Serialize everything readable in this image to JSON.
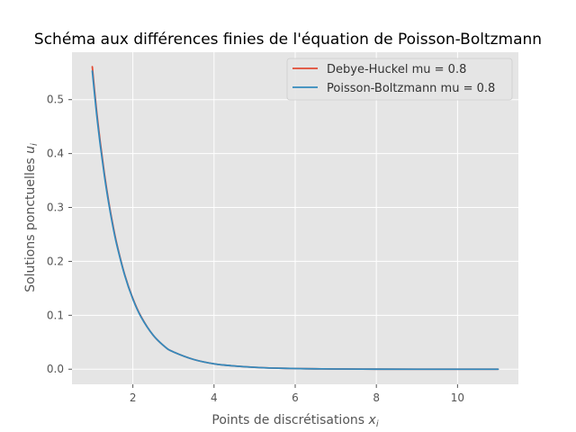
{
  "chart_data": {
    "type": "line",
    "title": "Schéma aux différences finies de l'équation de Poisson-Boltzmann",
    "xlabel": "Points de discrétisations",
    "xlabel_math": "x",
    "xlabel_sub": "i",
    "ylabel": "Solutions ponctuelles",
    "ylabel_math": "u",
    "ylabel_sub": "i",
    "xlim": [
      0.5,
      11.5
    ],
    "ylim": [
      -0.028,
      0.588
    ],
    "xticks": [
      2,
      4,
      6,
      8,
      10
    ],
    "yticks": [
      0.0,
      0.1,
      0.2,
      0.3,
      0.4,
      0.5
    ],
    "xtick_labels": [
      "2",
      "4",
      "6",
      "8",
      "10"
    ],
    "ytick_labels": [
      "0.0",
      "0.1",
      "0.2",
      "0.3",
      "0.4",
      "0.5"
    ],
    "grid": true,
    "legend_position": "top-right",
    "series": [
      {
        "name": "Debye-Huckel mu = 0.8",
        "color": "#e24a33",
        "x": [
          1.0,
          1.1,
          1.2,
          1.3,
          1.4,
          1.5,
          1.6,
          1.8,
          2.0,
          2.2,
          2.5,
          2.8,
          3.0,
          3.5,
          4.0,
          4.5,
          5.0,
          5.5,
          6.0,
          6.5,
          7.0,
          8.0,
          9.0,
          10.0,
          11.0
        ],
        "y": [
          0.561,
          0.484,
          0.419,
          0.362,
          0.313,
          0.271,
          0.234,
          0.175,
          0.131,
          0.098,
          0.063,
          0.041,
          0.032,
          0.018,
          0.01,
          0.006,
          0.0035,
          0.002,
          0.0012,
          0.0007,
          0.0004,
          0.0001,
          0.0,
          0.0,
          0.0
        ]
      },
      {
        "name": "Poisson-Boltzmann mu = 0.8",
        "color": "#348abd",
        "x": [
          1.0,
          1.1,
          1.2,
          1.3,
          1.4,
          1.5,
          1.6,
          1.8,
          2.0,
          2.2,
          2.5,
          2.8,
          3.0,
          3.5,
          4.0,
          4.5,
          5.0,
          5.5,
          6.0,
          6.5,
          7.0,
          8.0,
          9.0,
          10.0,
          11.0
        ],
        "y": [
          0.553,
          0.478,
          0.414,
          0.358,
          0.31,
          0.268,
          0.232,
          0.174,
          0.13,
          0.097,
          0.063,
          0.041,
          0.032,
          0.018,
          0.01,
          0.006,
          0.0035,
          0.002,
          0.0012,
          0.0007,
          0.0004,
          0.0001,
          0.0,
          0.0,
          0.0
        ]
      }
    ]
  }
}
